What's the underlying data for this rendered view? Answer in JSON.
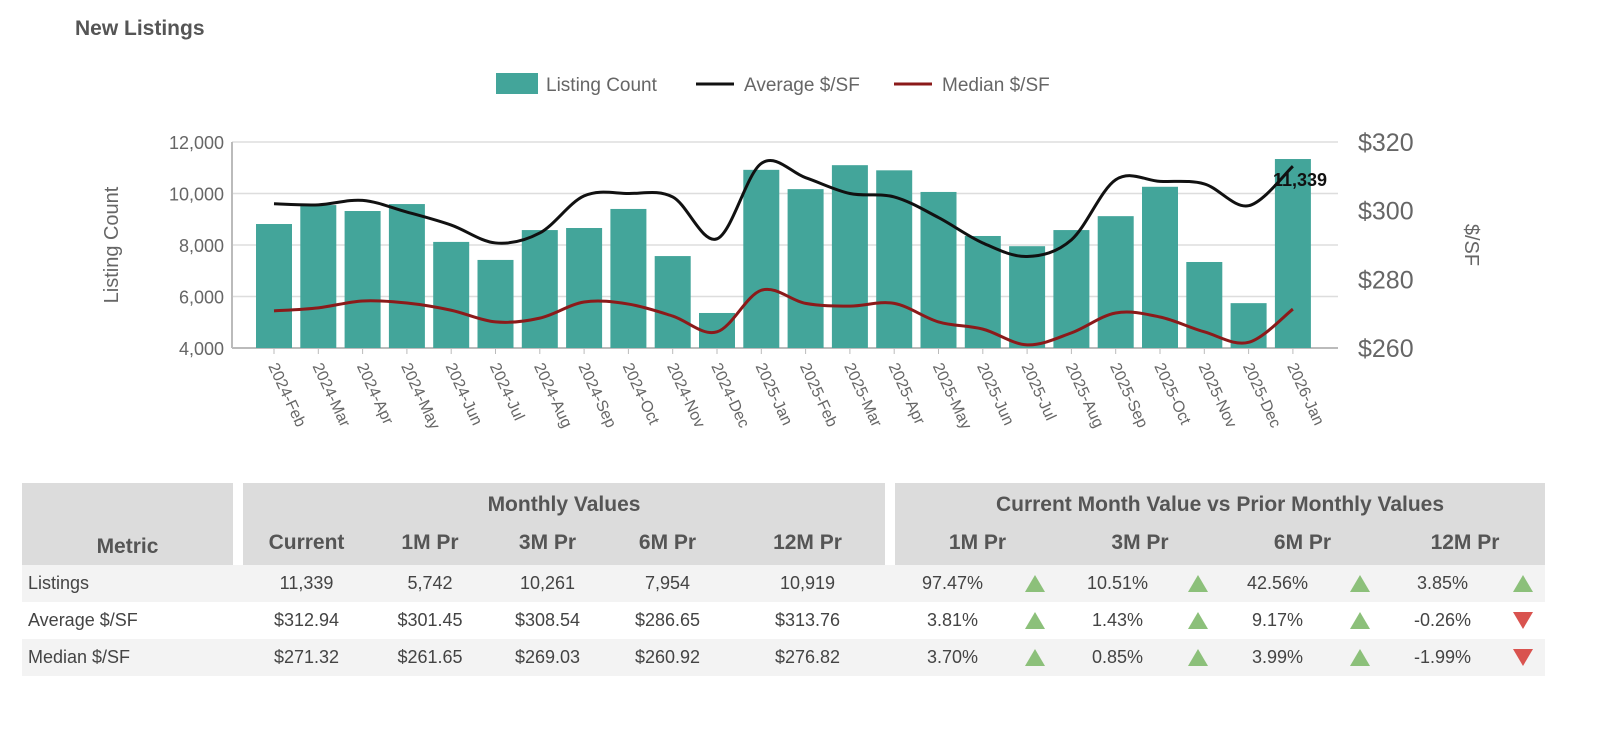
{
  "title": "New Listings",
  "chart_data": {
    "type": "bar+line",
    "legend": [
      "Listing Count",
      "Average $/SF",
      "Median $/SF"
    ],
    "legend_position": "top",
    "colors": {
      "bars": "#43a59a",
      "average": "#111111",
      "median": "#8b1a1a"
    },
    "ylabel": "Listing Count",
    "y2label": "$/SF",
    "ylim": [
      4000,
      12000
    ],
    "y2lim": [
      260,
      320
    ],
    "yticks": [
      "4,000",
      "6,000",
      "8,000",
      "10,000",
      "12,000"
    ],
    "y2ticks": [
      "$260",
      "$280",
      "$300",
      "$320"
    ],
    "grid": true,
    "categories": [
      "2024-Feb",
      "2024-Mar",
      "2024-Apr",
      "2024-May",
      "2024-Jun",
      "2024-Jul",
      "2024-Aug",
      "2024-Sep",
      "2024-Oct",
      "2024-Nov",
      "2024-Dec",
      "2025-Jan",
      "2025-Feb",
      "2025-Mar",
      "2025-Apr",
      "2025-May",
      "2025-Jun",
      "2025-Jul",
      "2025-Aug",
      "2025-Sep",
      "2025-Oct",
      "2025-Nov",
      "2025-Dec",
      "2026-Jan"
    ],
    "series": [
      {
        "name": "Listing Count",
        "axis": "left",
        "values": [
          8815,
          9550,
          9320,
          9590,
          8120,
          7420,
          8580,
          8660,
          9400,
          7570,
          5360,
          10919,
          10170,
          11100,
          10900,
          10060,
          8350,
          7954,
          8580,
          9120,
          10261,
          7340,
          5742,
          11339
        ]
      },
      {
        "name": "Average $/SF",
        "axis": "right",
        "values": [
          302,
          301.7,
          303,
          299.6,
          295.8,
          290.6,
          293.5,
          304.3,
          305,
          304,
          291.8,
          313.76,
          309.6,
          305,
          304,
          298,
          290.6,
          286.65,
          291.5,
          309,
          308.54,
          307.8,
          301.45,
          312.94
        ]
      },
      {
        "name": "Median $/SF",
        "axis": "right",
        "values": [
          270.8,
          271.7,
          273.7,
          273.1,
          271,
          267.6,
          268.7,
          273.4,
          272.8,
          269.3,
          264.7,
          276.82,
          273,
          272.2,
          273,
          267.6,
          265.5,
          260.92,
          264.4,
          270.2,
          269.03,
          264.7,
          261.65,
          271.32
        ]
      }
    ],
    "annotation": "11,339"
  },
  "table": {
    "metric_header": "Metric",
    "group1": "Monthly Values",
    "group2": "Current Month Value vs Prior Monthly Values",
    "cols1": [
      "Current",
      "1M Pr",
      "3M Pr",
      "6M Pr",
      "12M Pr"
    ],
    "cols2": [
      "1M Pr",
      "3M Pr",
      "6M Pr",
      "12M Pr"
    ],
    "rows": [
      {
        "metric": "Listings",
        "values": [
          "11,339",
          "5,742",
          "10,261",
          "7,954",
          "10,919"
        ],
        "pct": [
          "97.47%",
          "10.51%",
          "42.56%",
          "3.85%"
        ],
        "dir": [
          "up",
          "up",
          "up",
          "up"
        ]
      },
      {
        "metric": "Average $/SF",
        "values": [
          "$312.94",
          "$301.45",
          "$308.54",
          "$286.65",
          "$313.76"
        ],
        "pct": [
          "3.81%",
          "1.43%",
          "9.17%",
          "-0.26%"
        ],
        "dir": [
          "up",
          "up",
          "up",
          "down"
        ]
      },
      {
        "metric": "Median $/SF",
        "values": [
          "$271.32",
          "$261.65",
          "$269.03",
          "$260.92",
          "$276.82"
        ],
        "pct": [
          "3.70%",
          "0.85%",
          "3.99%",
          "-1.99%"
        ],
        "dir": [
          "up",
          "up",
          "up",
          "down"
        ]
      }
    ]
  }
}
